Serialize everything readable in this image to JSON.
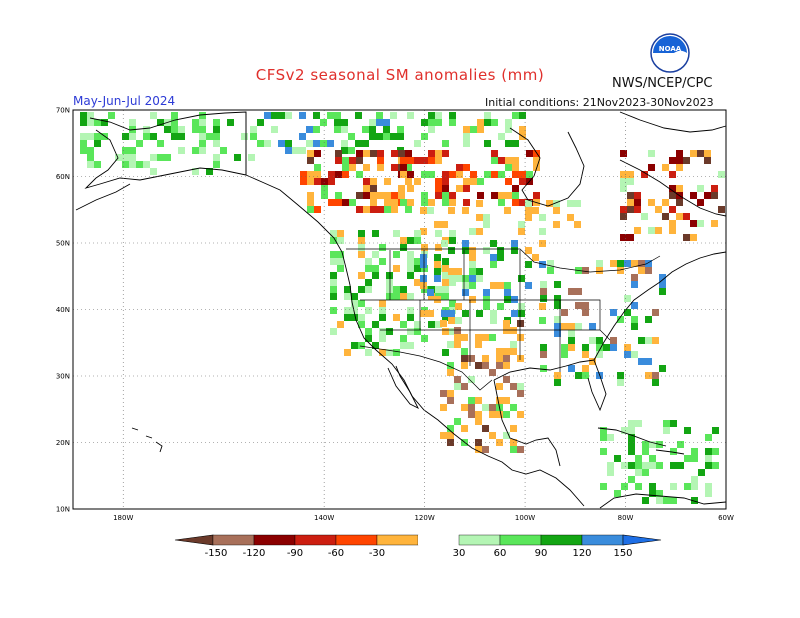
{
  "header": {
    "title": "CFSv2 seasonal SM anomalies (mm)",
    "agency": "NWS/NCEP/CPC",
    "season": "May-Jun-Jul 2024",
    "initial_conditions": "Initial conditions: 21Nov2023-30Nov2023",
    "logo_text": "NOAA"
  },
  "map": {
    "projection": "lat-lon",
    "lon_range": [
      -190,
      -60
    ],
    "lat_range": [
      10,
      70
    ],
    "lat_labels": [
      "70N",
      "60N",
      "50N",
      "40N",
      "30N",
      "20N",
      "10N"
    ],
    "lon_labels": [
      "180W",
      "140W",
      "120W",
      "100W",
      "80W",
      "60W"
    ],
    "grid": "dotted"
  },
  "legend": {
    "labels": [
      "-150",
      "-120",
      "-90",
      "-60",
      "-30",
      "30",
      "60",
      "90",
      "120",
      "150"
    ],
    "colors": [
      "#6b3a2a",
      "#a8705a",
      "#8b0000",
      "#cc1e10",
      "#ff4500",
      "#ffb43c",
      "#ffffff",
      "#b4f5b4",
      "#5ae65a",
      "#13a513",
      "#3a8cdc",
      "#1e6fe6"
    ]
  }
}
